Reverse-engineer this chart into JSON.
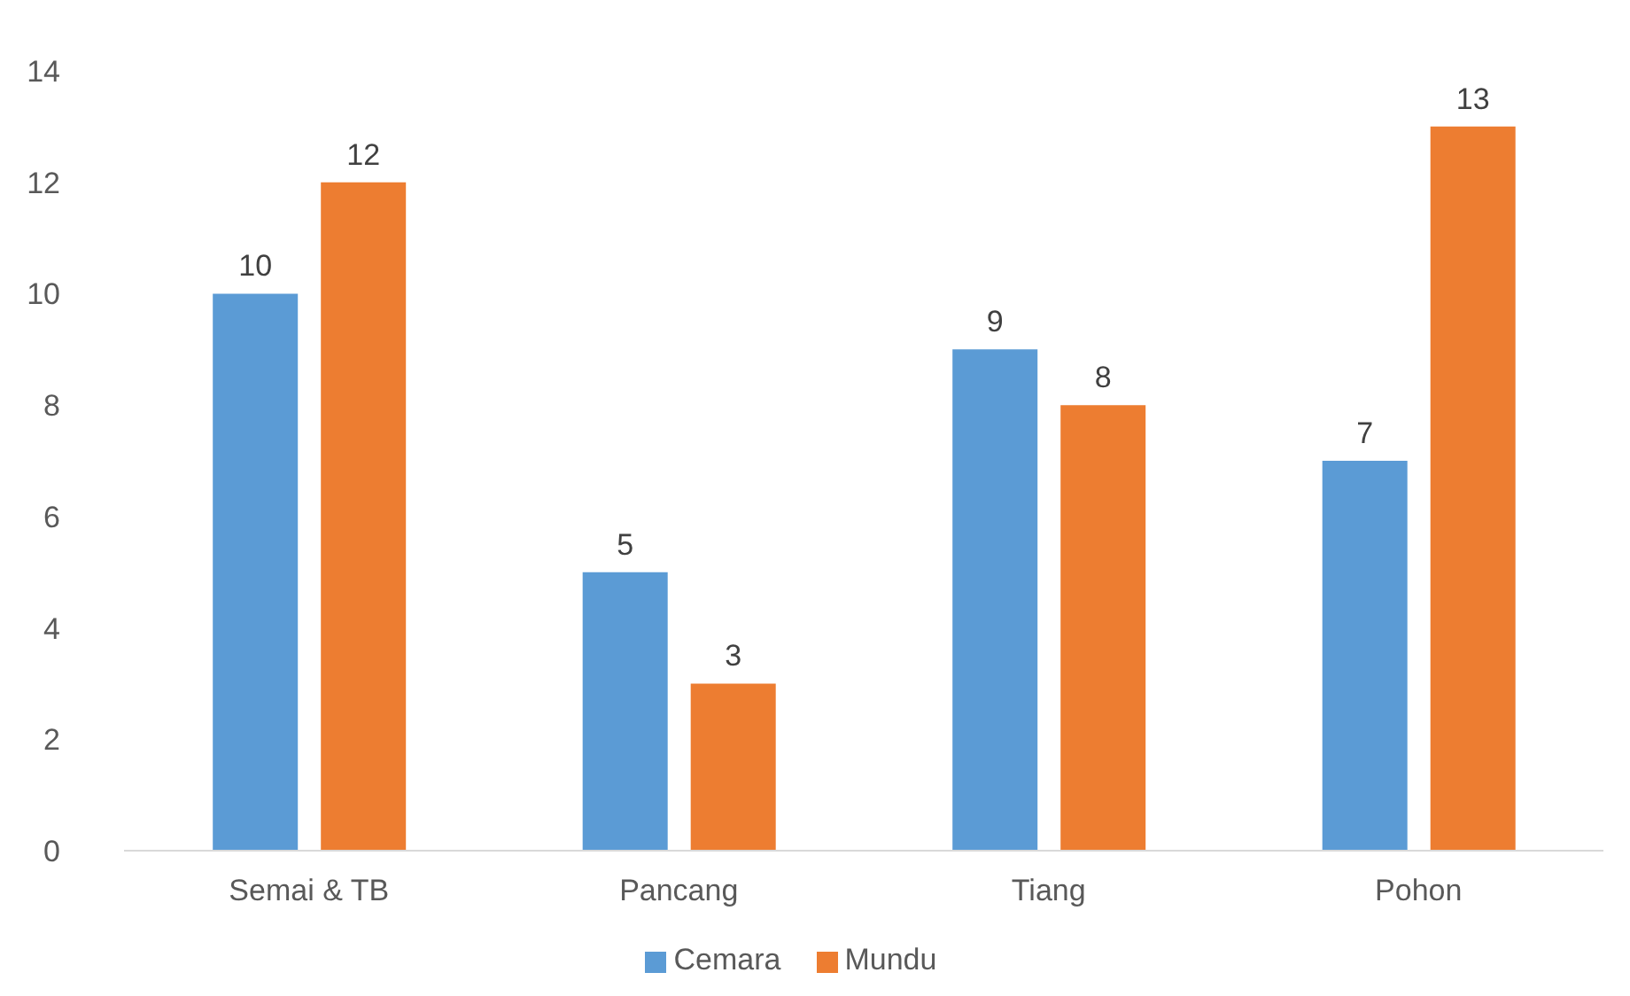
{
  "chart_data": {
    "type": "bar",
    "categories": [
      "Semai & TB",
      "Pancang",
      "Tiang",
      "Pohon"
    ],
    "series": [
      {
        "name": "Cemara",
        "color": "#5b9bd5",
        "values": [
          10,
          5,
          9,
          7
        ]
      },
      {
        "name": "Mundu",
        "color": "#ed7d31",
        "values": [
          12,
          3,
          8,
          13
        ]
      }
    ],
    "ylim": [
      0,
      14
    ],
    "yticks": [
      0,
      2,
      4,
      6,
      8,
      10,
      12,
      14
    ],
    "data_labels": true,
    "legend": "bottom"
  }
}
